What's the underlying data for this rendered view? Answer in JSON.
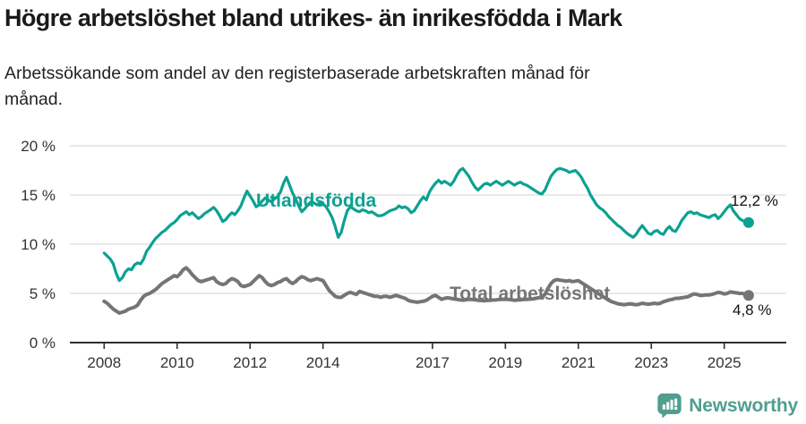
{
  "header": {
    "title": "Högre arbetslöshet bland utrikes- än inrikesfödda i Mark",
    "subtitle": [
      "Arbetssökande som andel av den registerbaserade arbetskraften månad för",
      "månad."
    ]
  },
  "footer": {
    "brand": "Newsworthy"
  },
  "colors": {
    "teal": "#0ca192",
    "gray": "#757575",
    "grid": "#dcdcdc",
    "axis": "#2e2e2e",
    "tick_text": "#333333",
    "brand": "#4f9e90"
  },
  "chart_data": {
    "type": "line",
    "title": "Högre arbetslöshet bland utrikes- än inrikesfödda i Mark",
    "xlabel": "",
    "ylabel": "",
    "x_start_year": 2008,
    "x_step_months": 1,
    "x_tick_labels": [
      "2008",
      "2010",
      "2012",
      "2014",
      "2017",
      "2019",
      "2021",
      "2023",
      "2025"
    ],
    "y_ticks": [
      0,
      5,
      10,
      15,
      20
    ],
    "y_tick_suffix": " %",
    "ylim": [
      0,
      20
    ],
    "grid": "horizontal",
    "legend_position": "inline-labels",
    "series": [
      {
        "name": "Utlandsfödda",
        "color_key": "teal",
        "end_label": "12,2 %",
        "end_value": 12.2,
        "values": [
          9.1,
          8.8,
          8.5,
          8.0,
          7.0,
          6.3,
          6.6,
          7.2,
          7.5,
          7.4,
          7.9,
          8.1,
          8.0,
          8.5,
          9.3,
          9.7,
          10.2,
          10.6,
          10.9,
          11.2,
          11.4,
          11.7,
          12.0,
          12.2,
          12.5,
          12.9,
          13.1,
          13.3,
          13.0,
          13.2,
          12.9,
          12.6,
          12.8,
          13.1,
          13.3,
          13.5,
          13.75,
          13.4,
          12.9,
          12.3,
          12.5,
          12.9,
          13.2,
          13.0,
          13.4,
          13.9,
          14.7,
          15.4,
          14.9,
          14.4,
          13.8,
          14.0,
          14.4,
          14.7,
          14.5,
          14.3,
          14.6,
          14.8,
          15.3,
          16.2,
          16.8,
          16.0,
          15.2,
          14.6,
          13.9,
          13.3,
          13.6,
          14.0,
          14.3,
          14.2,
          14.0,
          14.2,
          14.1,
          13.8,
          13.3,
          12.7,
          11.8,
          10.7,
          11.2,
          12.4,
          13.4,
          13.8,
          13.6,
          13.4,
          13.3,
          13.5,
          13.4,
          13.2,
          13.3,
          13.1,
          12.9,
          12.9,
          13.0,
          13.2,
          13.4,
          13.5,
          13.6,
          13.9,
          13.7,
          13.8,
          13.6,
          13.2,
          13.4,
          13.9,
          14.4,
          14.8,
          14.5,
          15.3,
          15.8,
          16.2,
          16.5,
          16.2,
          16.4,
          16.2,
          16.0,
          16.4,
          17.0,
          17.5,
          17.7,
          17.3,
          16.9,
          16.3,
          15.8,
          15.5,
          15.8,
          16.1,
          16.2,
          16.0,
          16.2,
          16.4,
          16.2,
          16.0,
          16.2,
          16.4,
          16.2,
          16.0,
          16.2,
          16.3,
          16.1,
          16.0,
          15.8,
          15.6,
          15.4,
          15.2,
          15.1,
          15.5,
          16.2,
          16.9,
          17.3,
          17.6,
          17.7,
          17.6,
          17.5,
          17.3,
          17.4,
          17.5,
          17.2,
          16.8,
          16.2,
          15.7,
          15.0,
          14.5,
          14.0,
          13.7,
          13.5,
          13.2,
          12.8,
          12.5,
          12.2,
          11.9,
          11.7,
          11.4,
          11.1,
          10.9,
          10.7,
          11.0,
          11.5,
          11.9,
          11.5,
          11.1,
          11.0,
          11.3,
          11.4,
          11.1,
          11.0,
          11.5,
          11.8,
          11.4,
          11.3,
          11.8,
          12.4,
          12.8,
          13.2,
          13.3,
          13.1,
          13.2,
          13.0,
          12.9,
          12.8,
          12.7,
          12.9,
          13.0,
          12.6,
          12.9,
          13.3,
          13.7,
          14.0,
          13.4,
          13.0,
          12.6,
          12.4,
          12.3,
          12.2
        ]
      },
      {
        "name": "Total arbetslöshet",
        "color_key": "gray",
        "end_label": "4,8 %",
        "end_value": 4.8,
        "values": [
          4.2,
          4.0,
          3.7,
          3.4,
          3.2,
          3.0,
          3.1,
          3.2,
          3.4,
          3.5,
          3.6,
          3.8,
          4.3,
          4.7,
          4.9,
          5.0,
          5.2,
          5.4,
          5.7,
          6.0,
          6.2,
          6.4,
          6.6,
          6.8,
          6.7,
          7.0,
          7.4,
          7.6,
          7.3,
          6.9,
          6.6,
          6.3,
          6.2,
          6.3,
          6.4,
          6.5,
          6.6,
          6.2,
          6.0,
          5.9,
          6.0,
          6.3,
          6.5,
          6.4,
          6.2,
          5.8,
          5.7,
          5.8,
          5.9,
          6.2,
          6.5,
          6.8,
          6.6,
          6.2,
          5.9,
          5.8,
          5.9,
          6.1,
          6.2,
          6.4,
          6.5,
          6.2,
          6.0,
          6.2,
          6.5,
          6.7,
          6.6,
          6.4,
          6.3,
          6.4,
          6.5,
          6.4,
          6.3,
          5.8,
          5.3,
          5.0,
          4.7,
          4.6,
          4.6,
          4.8,
          5.0,
          5.1,
          5.0,
          4.9,
          5.2,
          5.1,
          5.0,
          4.9,
          4.8,
          4.7,
          4.7,
          4.6,
          4.7,
          4.7,
          4.6,
          4.7,
          4.8,
          4.7,
          4.6,
          4.5,
          4.3,
          4.2,
          4.15,
          4.1,
          4.15,
          4.2,
          4.3,
          4.5,
          4.7,
          4.8,
          4.6,
          4.4,
          4.5,
          4.55,
          4.5,
          4.45,
          4.4,
          4.35,
          4.3,
          4.35,
          4.4,
          4.38,
          4.35,
          4.3,
          4.28,
          4.25,
          4.28,
          4.3,
          4.33,
          4.35,
          4.38,
          4.4,
          4.4,
          4.38,
          4.35,
          4.3,
          4.33,
          4.35,
          4.38,
          4.4,
          4.42,
          4.45,
          4.5,
          4.55,
          4.6,
          4.9,
          5.5,
          6.0,
          6.3,
          6.4,
          6.35,
          6.3,
          6.25,
          6.3,
          6.2,
          6.25,
          6.3,
          6.1,
          5.9,
          5.7,
          5.5,
          5.3,
          5.1,
          4.9,
          4.7,
          4.5,
          4.3,
          4.15,
          4.05,
          3.95,
          3.9,
          3.85,
          3.9,
          3.95,
          3.9,
          3.85,
          3.9,
          4.0,
          3.95,
          3.9,
          3.95,
          4.0,
          3.95,
          4.0,
          4.15,
          4.25,
          4.35,
          4.4,
          4.5,
          4.5,
          4.55,
          4.6,
          4.65,
          4.8,
          4.95,
          4.9,
          4.8,
          4.8,
          4.85,
          4.85,
          4.9,
          5.0,
          5.1,
          5.05,
          4.95,
          5.0,
          5.15,
          5.1,
          5.05,
          5.0,
          5.0,
          4.9,
          4.8
        ]
      }
    ]
  }
}
